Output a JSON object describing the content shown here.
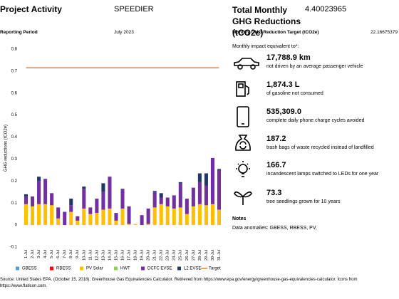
{
  "header": {
    "title": "Project Activity",
    "project": "SPEEDIER",
    "period_label": "Reporting Period",
    "period": "July 2023"
  },
  "chart_data": {
    "type": "bar",
    "stacked": true,
    "ylabel": "GHG reductions (tCO2e)",
    "categories": [
      "1-Jul",
      "2-Jul",
      "3-Jul",
      "4-Jul",
      "5-Jul",
      "6-Jul",
      "7-Jul",
      "8-Jul",
      "9-Jul",
      "10-Jul",
      "11-Jul",
      "12-Jul",
      "13-Jul",
      "14-Jul",
      "15-Jul",
      "16-Jul",
      "17-Jul",
      "18-Jul",
      "19-Jul",
      "20-Jul",
      "21-Jul",
      "22-Jul",
      "23-Jul",
      "24-Jul",
      "25-Jul",
      "26-Jul",
      "27-Jul",
      "28-Jul",
      "29-Jul",
      "30-Jul",
      "31-Jul"
    ],
    "series": [
      {
        "name": "GBESS",
        "color": "#5b9bd5",
        "values": [
          0,
          0,
          0,
          0,
          0,
          0,
          0,
          0,
          0,
          0,
          0,
          0,
          0,
          0,
          0,
          0,
          0,
          0,
          0,
          0,
          0,
          0,
          0,
          0,
          0,
          0,
          0,
          0,
          0,
          0,
          0
        ]
      },
      {
        "name": "RBESS",
        "color": "#ff0000",
        "values": [
          0,
          0,
          0,
          0,
          0,
          0,
          0,
          0,
          0,
          0,
          0,
          0,
          0,
          0,
          0,
          0,
          0,
          0,
          0,
          0,
          0,
          0,
          0,
          0,
          0,
          0,
          0,
          0,
          0,
          0,
          0
        ]
      },
      {
        "name": "PV Solar",
        "color": "#ffc000",
        "values": [
          0.095,
          0.085,
          0.095,
          0.095,
          0.09,
          0.03,
          0,
          0.06,
          0.02,
          0.075,
          0.05,
          0.055,
          0.07,
          0.075,
          0.02,
          0.075,
          0.005,
          0.005,
          0,
          0.005,
          0.08,
          0.095,
          0.085,
          0.075,
          0.08,
          0.05,
          0.085,
          0.095,
          0.09,
          0.095,
          0.07
        ]
      },
      {
        "name": "HWT",
        "color": "#92d050",
        "values": [
          0,
          0,
          0,
          0,
          0,
          0,
          0,
          0,
          0,
          0,
          0,
          0,
          0,
          0,
          0,
          0,
          0,
          0,
          0,
          0,
          0,
          0,
          0,
          0,
          0,
          0,
          0,
          0,
          0,
          0,
          0
        ]
      },
      {
        "name": "DCFC EVSE",
        "color": "#7030a0",
        "values": [
          0.035,
          0.045,
          0.105,
          0.115,
          0.055,
          0.05,
          0.06,
          0.03,
          0.02,
          0.09,
          0.03,
          0.065,
          0.08,
          0.145,
          0.035,
          0.09,
          0.08,
          0,
          0.045,
          0.07,
          0.07,
          0.03,
          0.04,
          0.06,
          0.11,
          0.07,
          0.085,
          0.1,
          0.09,
          0.21,
          0.18
        ]
      },
      {
        "name": "L2 EVSE",
        "color": "#1f3864",
        "values": [
          0.01,
          0,
          0.02,
          0,
          0,
          0,
          0,
          0.03,
          0,
          0.01,
          0,
          0,
          0.04,
          0,
          0,
          0,
          0,
          0,
          0,
          0,
          0.005,
          0.02,
          0,
          0,
          0.005,
          0,
          0,
          0.04,
          0.055,
          0,
          0.005
        ]
      },
      {
        "name": "Target",
        "type": "line",
        "color": "#ed7d31",
        "values": [
          0.715,
          0.715,
          0.715,
          0.715,
          0.715,
          0.715,
          0.715,
          0.715,
          0.715,
          0.715,
          0.715,
          0.715,
          0.715,
          0.715,
          0.715,
          0.715,
          0.715,
          0.715,
          0.715,
          0.715,
          0.715,
          0.715,
          0.715,
          0.715,
          0.715,
          0.715,
          0.715,
          0.715,
          0.715,
          0.715,
          0.715
        ]
      }
    ],
    "ylim": [
      -0.1,
      0.8
    ],
    "yticks": [
      -0.1,
      0,
      0.1,
      0.2,
      0.3,
      0.4,
      0.5,
      0.6,
      0.7,
      0.8
    ],
    "grid": false,
    "legend": "bottom"
  },
  "summary": {
    "total_label": "Total Monthly GHG Reductions (tCO2e)",
    "total_value": "4.40023965",
    "target_label": "Monthly GHG Reduction Target (tCO2e)",
    "target_value": "22.16675379",
    "impact_intro": "Monthly impact equivalent to*:",
    "impacts": [
      {
        "value": "17,788.9 km",
        "description": "not driven by an average passenger vehicle"
      },
      {
        "value": "1,874.3 L",
        "description": "of gasoline not consumed"
      },
      {
        "value": "535,309.0",
        "description": "complete daily phone charge cycles avoided"
      },
      {
        "value": "187.2",
        "description": "trash bags of waste recycled instead of landfilled"
      },
      {
        "value": "166.7",
        "description": "incandescent lamps switched to LEDs for one year"
      },
      {
        "value": "73.3",
        "description": "tree seedlings grown for 10 years"
      }
    ],
    "notes_title": "Notes",
    "notes_text": "Data anomalies: GBESS, RBESS, PV,"
  },
  "footer": "Source: United States EPA. (October 15, 2018). Greenhouse Gas Equivalencies Calculator. Retrieved from https://www.epa.gov/energy/greenhouse-gas-equivalencies-calculator. Icons from https://www.flaticon.com."
}
